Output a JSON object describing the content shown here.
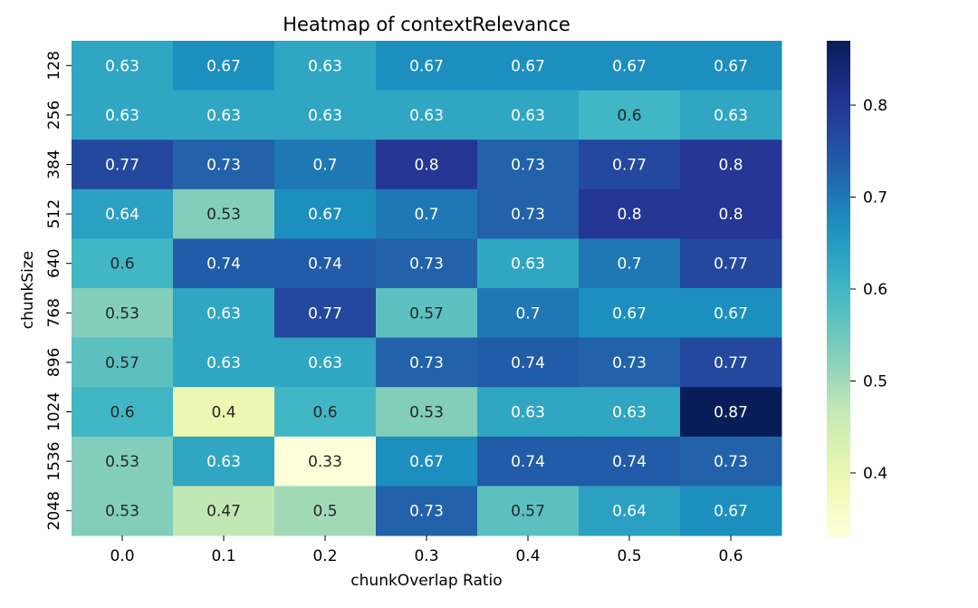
{
  "chart_data": {
    "type": "heatmap",
    "title": "Heatmap of contextRelevance",
    "xlabel": "chunkOverlap Ratio",
    "ylabel": "chunkSize",
    "x_categories": [
      "0.0",
      "0.1",
      "0.2",
      "0.3",
      "0.4",
      "0.5",
      "0.6"
    ],
    "y_categories": [
      "128",
      "256",
      "384",
      "512",
      "640",
      "768",
      "896",
      "1024",
      "1536",
      "2048"
    ],
    "values": [
      [
        0.63,
        0.67,
        0.63,
        0.67,
        0.67,
        0.67,
        0.67
      ],
      [
        0.63,
        0.63,
        0.63,
        0.63,
        0.63,
        0.6,
        0.63
      ],
      [
        0.77,
        0.73,
        0.7,
        0.8,
        0.73,
        0.77,
        0.8
      ],
      [
        0.64,
        0.53,
        0.67,
        0.7,
        0.73,
        0.8,
        0.8
      ],
      [
        0.6,
        0.74,
        0.74,
        0.73,
        0.63,
        0.7,
        0.77
      ],
      [
        0.53,
        0.63,
        0.77,
        0.57,
        0.7,
        0.67,
        0.67
      ],
      [
        0.57,
        0.63,
        0.63,
        0.73,
        0.74,
        0.73,
        0.77
      ],
      [
        0.6,
        0.4,
        0.6,
        0.53,
        0.63,
        0.63,
        0.87
      ],
      [
        0.53,
        0.63,
        0.33,
        0.67,
        0.74,
        0.74,
        0.73
      ],
      [
        0.53,
        0.47,
        0.5,
        0.73,
        0.57,
        0.64,
        0.67
      ]
    ],
    "colormap": "YlGnBu",
    "color_range": [
      0.33,
      0.87
    ],
    "colorbar_ticks": [
      0.4,
      0.5,
      0.6,
      0.7,
      0.8
    ],
    "colorbar_placement": "right"
  }
}
